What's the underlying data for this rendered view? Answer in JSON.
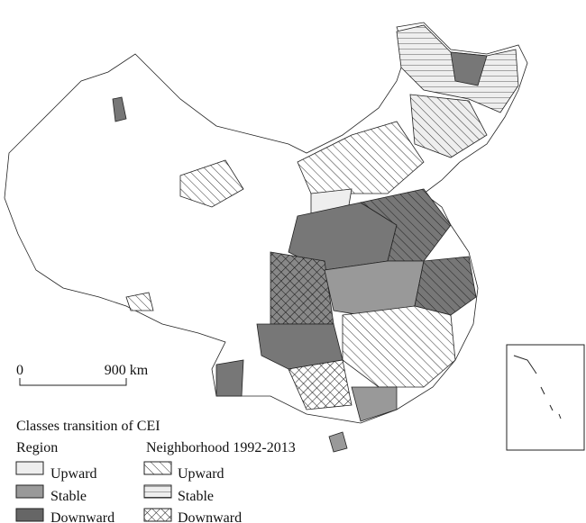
{
  "scale_bar": {
    "start": "0",
    "end": "900 km"
  },
  "legend": {
    "title": "Classes transition of CEI",
    "region": {
      "title": "Region",
      "items": [
        "Upward",
        "Stable",
        "Downward"
      ]
    },
    "neighborhood": {
      "title": "Neighborhood 1992-2013",
      "items": [
        "Upward",
        "Stable",
        "Downward"
      ]
    }
  }
}
